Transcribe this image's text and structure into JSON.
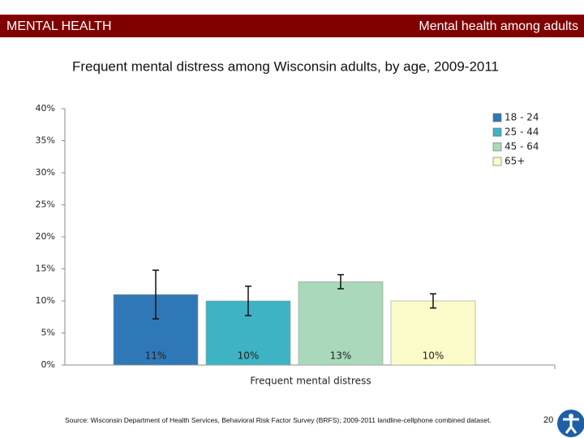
{
  "header": {
    "left": "MENTAL HEALTH",
    "right": "Mental health among adults"
  },
  "chart_data": {
    "type": "bar",
    "title": "Frequent mental distress among Wisconsin adults, by age, 2009-2011",
    "x_label": "Frequent mental distress",
    "categories": [
      null
    ],
    "series": [
      {
        "name": "18 - 24",
        "color": "#2f78b7",
        "values": [
          11
        ],
        "value_labels": [
          "11%"
        ],
        "errors": [
          3.8
        ]
      },
      {
        "name": "25 - 44",
        "color": "#3db3c4",
        "values": [
          10
        ],
        "value_labels": [
          "10%"
        ],
        "errors": [
          2.3
        ]
      },
      {
        "name": "45 - 64",
        "color": "#a9d9ba",
        "values": [
          13
        ],
        "value_labels": [
          "13%"
        ],
        "errors": [
          1.1
        ]
      },
      {
        "name": "65+",
        "color": "#fbfbc9",
        "values": [
          10
        ],
        "value_labels": [
          "10%"
        ],
        "errors": [
          1.1
        ]
      }
    ],
    "ylim": [
      0,
      40
    ],
    "yticks": [
      {
        "value": 0,
        "label": "0%"
      },
      {
        "value": 5,
        "label": "5%"
      },
      {
        "value": 10,
        "label": "10%"
      },
      {
        "value": 15,
        "label": "15%"
      },
      {
        "value": 20,
        "label": "20%"
      },
      {
        "value": 25,
        "label": "25%"
      },
      {
        "value": 30,
        "label": "30%"
      },
      {
        "value": 35,
        "label": "35%"
      },
      {
        "value": 40,
        "label": "40%"
      }
    ],
    "legend": "top-right"
  },
  "footer": {
    "source": "Source: Wisconsin Department of Health Services, Behavioral Risk Factor Survey (BRFS); 2009-2011 landline-cellphone combined dataset.",
    "page": "20"
  }
}
